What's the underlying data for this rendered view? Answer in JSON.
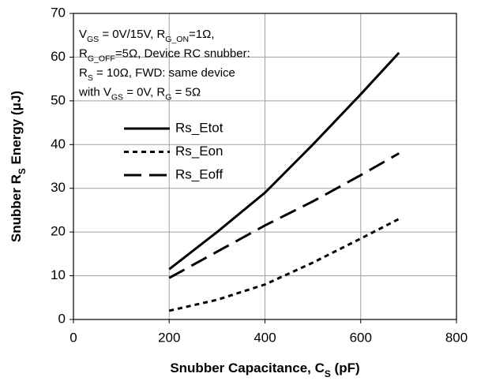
{
  "chart_data": {
    "type": "line",
    "xlabel": [
      {
        "text": "Snubber Capacitance, C"
      },
      {
        "text": "S",
        "subscript": true
      },
      {
        "text": " (pF)"
      }
    ],
    "ylabel": [
      {
        "text": "Snubber R"
      },
      {
        "text": "S",
        "subscript": true
      },
      {
        "text": " Energy (μJ)"
      }
    ],
    "annotation": [
      [
        {
          "text": "V"
        },
        {
          "text": "GS",
          "subscript": true
        },
        {
          "text": " = 0V/15V, R"
        },
        {
          "text": "G_ON",
          "subscript": true
        },
        {
          "text": "=1Ω,"
        }
      ],
      [
        {
          "text": "R"
        },
        {
          "text": "G_OFF",
          "subscript": true
        },
        {
          "text": "=5Ω, Device RC snubber:"
        }
      ],
      [
        {
          "text": "R"
        },
        {
          "text": "S",
          "subscript": true
        },
        {
          "text": " = 10Ω, FWD: same device"
        }
      ],
      [
        {
          "text": "with V"
        },
        {
          "text": "GS",
          "subscript": true
        },
        {
          "text": " = 0V, R"
        },
        {
          "text": "G",
          "subscript": true
        },
        {
          "text": " = 5Ω"
        }
      ]
    ],
    "x": [
      200,
      300,
      400,
      500,
      600,
      680
    ],
    "series": [
      {
        "name": "Rs_Etot",
        "color": "#000000",
        "dash": "solid",
        "values": [
          11.5,
          20,
          29,
          40,
          51.5,
          61
        ]
      },
      {
        "name": "Rs_Eon",
        "color": "#000000",
        "dash": "short",
        "values": [
          2,
          4.5,
          8,
          13,
          18.5,
          23
        ]
      },
      {
        "name": "Rs_Eoff",
        "color": "#000000",
        "dash": "long",
        "values": [
          9.5,
          15.5,
          21.5,
          27,
          33,
          38
        ]
      }
    ],
    "xlim": [
      0,
      800
    ],
    "xticks": [
      0,
      200,
      400,
      600,
      800
    ],
    "ylim": [
      0,
      70
    ],
    "yticks": [
      0,
      10,
      20,
      30,
      40,
      50,
      60,
      70
    ],
    "grid": true
  }
}
